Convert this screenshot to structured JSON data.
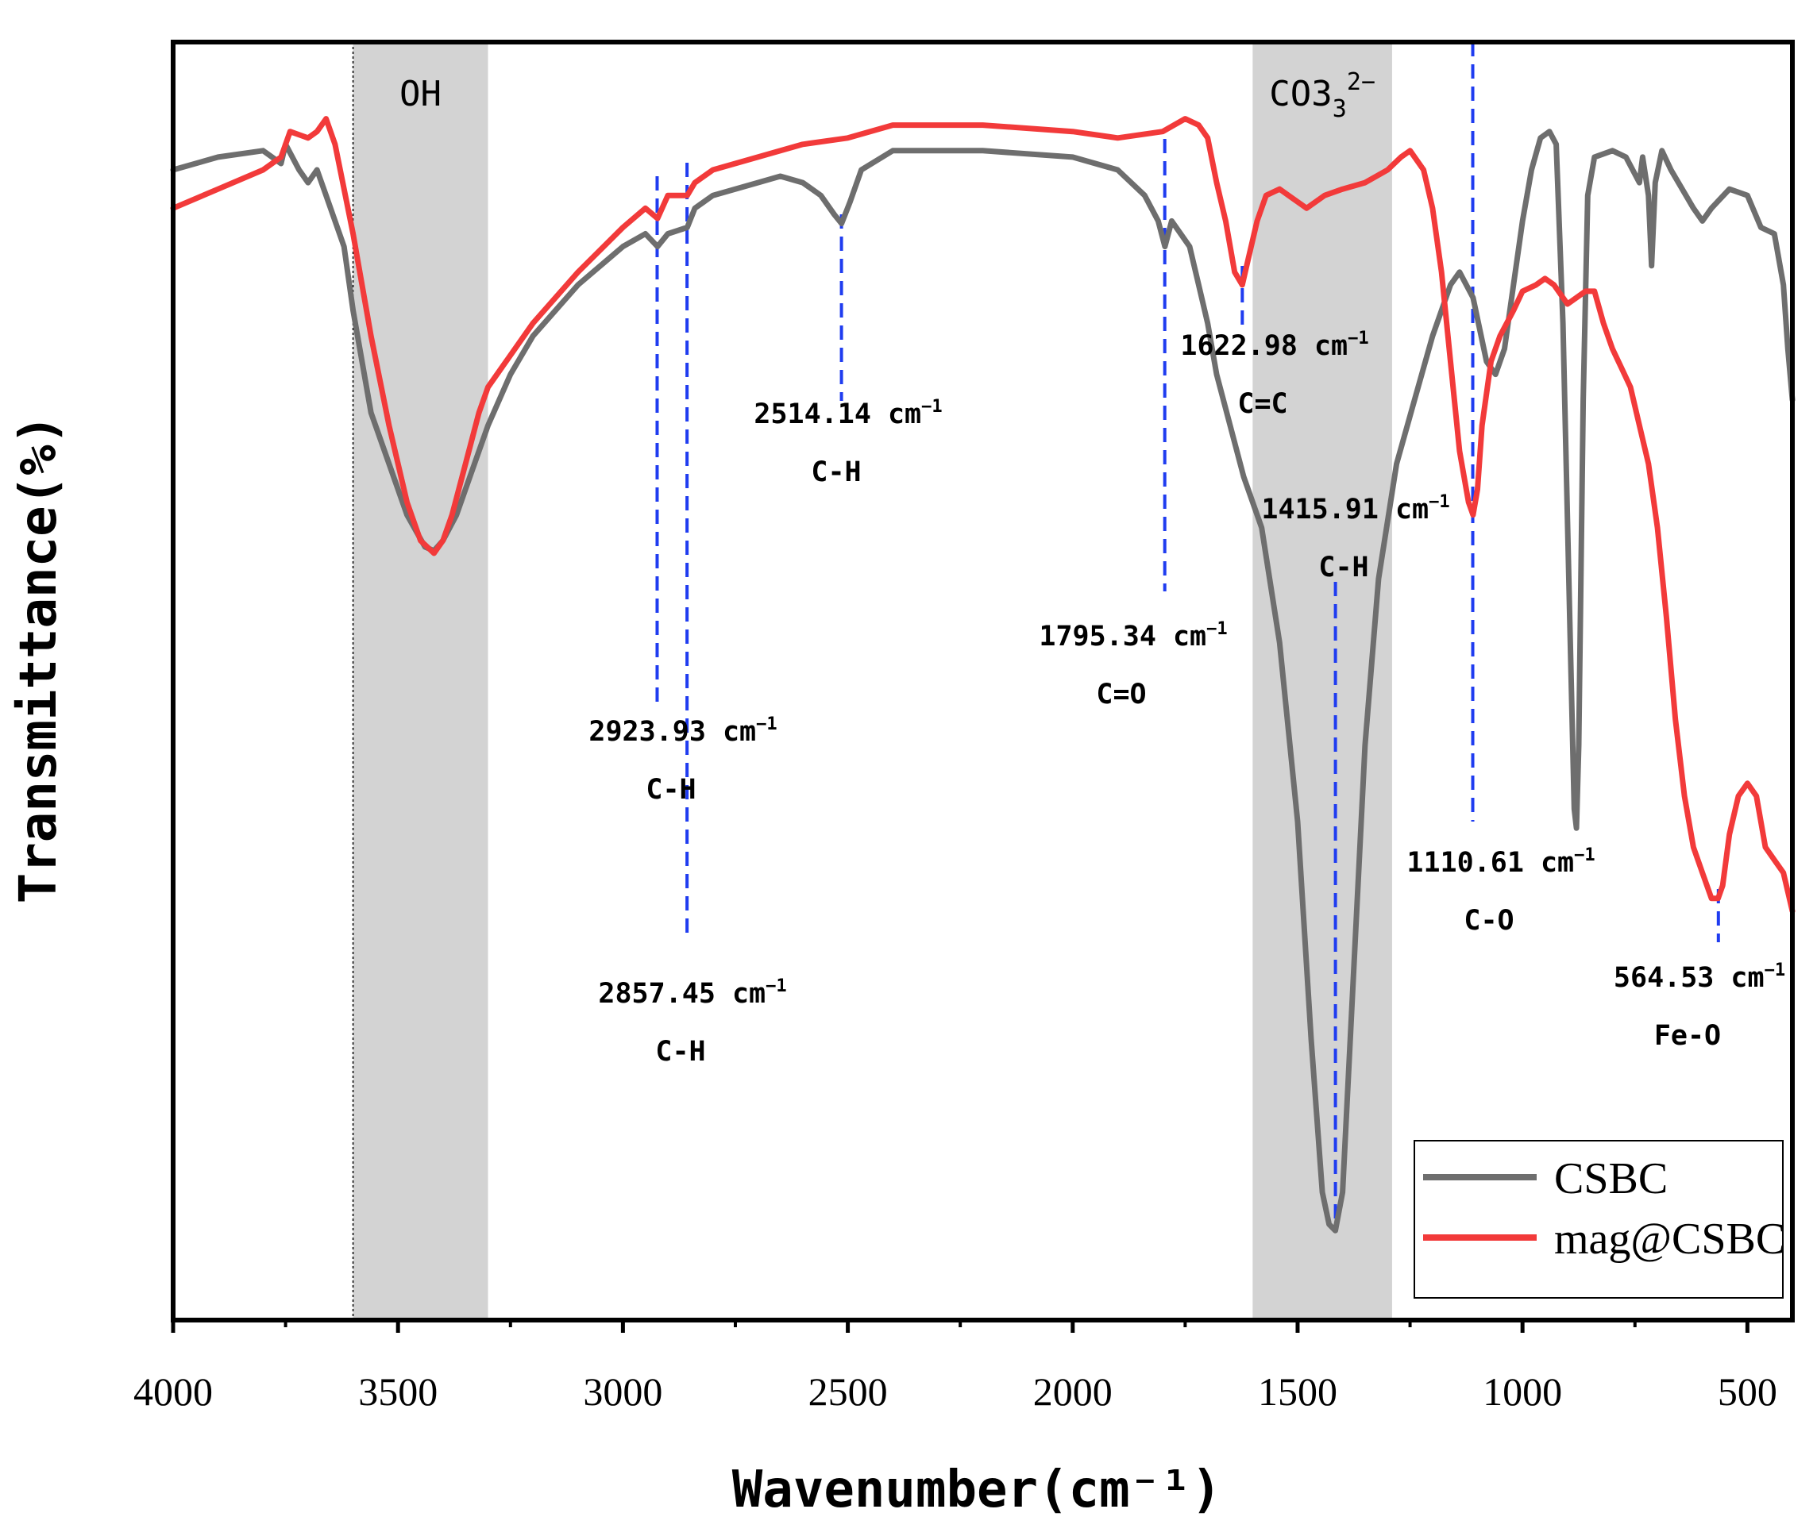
{
  "chart_data": {
    "type": "line",
    "title": "",
    "xlabel": "Wavenumber",
    "xlabel_unit": "(cm⁻¹)",
    "ylabel": "Transmittance(%)",
    "xlim": [
      4000,
      400
    ],
    "ylim": [
      0,
      100
    ],
    "x_ticks": [
      4000,
      3500,
      3000,
      2500,
      2000,
      1500,
      1000,
      500
    ],
    "x_tick_labels": [
      "4000",
      "3500",
      "3000",
      "2500",
      "2000",
      "1500",
      "1000",
      "500"
    ],
    "shaded_regions": [
      {
        "label": "OH",
        "x_from": 3600,
        "x_to": 3300
      },
      {
        "label": "CO3",
        "label_sub": "3",
        "label_sup": "2−",
        "x_from": 1600,
        "x_to": 1290
      }
    ],
    "series": [
      {
        "name": "CSBC",
        "color": "#6e6e6e",
        "points": [
          [
            4000,
            90
          ],
          [
            3900,
            91
          ],
          [
            3800,
            91.5
          ],
          [
            3760,
            90.5
          ],
          [
            3750,
            92
          ],
          [
            3720,
            90
          ],
          [
            3700,
            89
          ],
          [
            3680,
            90
          ],
          [
            3660,
            88
          ],
          [
            3620,
            84
          ],
          [
            3600,
            79
          ],
          [
            3560,
            71
          ],
          [
            3520,
            67
          ],
          [
            3480,
            63
          ],
          [
            3440,
            60.5
          ],
          [
            3420,
            60.2
          ],
          [
            3400,
            61
          ],
          [
            3370,
            63
          ],
          [
            3340,
            66
          ],
          [
            3300,
            70
          ],
          [
            3250,
            74
          ],
          [
            3200,
            77
          ],
          [
            3100,
            81
          ],
          [
            3000,
            84
          ],
          [
            2950,
            85
          ],
          [
            2923,
            84
          ],
          [
            2900,
            85
          ],
          [
            2857,
            85.5
          ],
          [
            2840,
            87
          ],
          [
            2800,
            88
          ],
          [
            2700,
            89
          ],
          [
            2650,
            89.5
          ],
          [
            2600,
            89
          ],
          [
            2560,
            88
          ],
          [
            2530,
            86.5
          ],
          [
            2514,
            85.8
          ],
          [
            2495,
            87.5
          ],
          [
            2470,
            90
          ],
          [
            2400,
            91.5
          ],
          [
            2200,
            91.5
          ],
          [
            2000,
            91
          ],
          [
            1900,
            90
          ],
          [
            1840,
            88
          ],
          [
            1810,
            86
          ],
          [
            1795,
            84
          ],
          [
            1780,
            86
          ],
          [
            1760,
            85
          ],
          [
            1740,
            84
          ],
          [
            1720,
            81
          ],
          [
            1700,
            78
          ],
          [
            1680,
            74
          ],
          [
            1650,
            70
          ],
          [
            1620,
            66
          ],
          [
            1580,
            62
          ],
          [
            1540,
            53
          ],
          [
            1500,
            39
          ],
          [
            1470,
            22
          ],
          [
            1445,
            10
          ],
          [
            1430,
            7.5
          ],
          [
            1416,
            7
          ],
          [
            1400,
            10
          ],
          [
            1380,
            24
          ],
          [
            1350,
            45
          ],
          [
            1320,
            58
          ],
          [
            1280,
            67
          ],
          [
            1240,
            72
          ],
          [
            1200,
            77
          ],
          [
            1160,
            81
          ],
          [
            1140,
            82
          ],
          [
            1110,
            80
          ],
          [
            1080,
            75
          ],
          [
            1060,
            74
          ],
          [
            1040,
            76
          ],
          [
            1020,
            81
          ],
          [
            1000,
            86
          ],
          [
            980,
            90
          ],
          [
            960,
            92.5
          ],
          [
            940,
            93
          ],
          [
            925,
            92
          ],
          [
            910,
            78
          ],
          [
            895,
            55
          ],
          [
            885,
            40
          ],
          [
            880,
            38.5
          ],
          [
            875,
            45
          ],
          [
            865,
            72
          ],
          [
            855,
            88
          ],
          [
            840,
            91
          ],
          [
            800,
            91.5
          ],
          [
            770,
            91
          ],
          [
            740,
            89
          ],
          [
            733,
            91
          ],
          [
            720,
            88
          ],
          [
            713,
            82.5
          ],
          [
            705,
            89
          ],
          [
            690,
            91.5
          ],
          [
            670,
            90
          ],
          [
            620,
            87
          ],
          [
            600,
            86
          ],
          [
            580,
            87
          ],
          [
            540,
            88.5
          ],
          [
            500,
            88
          ],
          [
            470,
            85.5
          ],
          [
            440,
            85
          ],
          [
            420,
            81
          ],
          [
            410,
            76
          ],
          [
            400,
            72
          ]
        ]
      },
      {
        "name": "mag@CSBC",
        "color": "#f23a3a",
        "points": [
          [
            4000,
            87
          ],
          [
            3900,
            88.5
          ],
          [
            3800,
            90
          ],
          [
            3760,
            91
          ],
          [
            3740,
            93
          ],
          [
            3700,
            92.5
          ],
          [
            3680,
            93
          ],
          [
            3660,
            94
          ],
          [
            3640,
            92
          ],
          [
            3600,
            85
          ],
          [
            3560,
            77
          ],
          [
            3520,
            70
          ],
          [
            3480,
            64
          ],
          [
            3450,
            61
          ],
          [
            3420,
            60
          ],
          [
            3400,
            61
          ],
          [
            3380,
            63
          ],
          [
            3350,
            67
          ],
          [
            3320,
            71
          ],
          [
            3300,
            73
          ],
          [
            3200,
            78
          ],
          [
            3100,
            82
          ],
          [
            3000,
            85.5
          ],
          [
            2950,
            87
          ],
          [
            2923,
            86.2
          ],
          [
            2900,
            88
          ],
          [
            2857,
            88
          ],
          [
            2840,
            89
          ],
          [
            2800,
            90
          ],
          [
            2700,
            91
          ],
          [
            2600,
            92
          ],
          [
            2500,
            92.5
          ],
          [
            2400,
            93.5
          ],
          [
            2200,
            93.5
          ],
          [
            2000,
            93
          ],
          [
            1900,
            92.5
          ],
          [
            1800,
            93
          ],
          [
            1750,
            94
          ],
          [
            1720,
            93.5
          ],
          [
            1700,
            92.5
          ],
          [
            1680,
            89
          ],
          [
            1660,
            86
          ],
          [
            1640,
            82
          ],
          [
            1623,
            81
          ],
          [
            1610,
            83
          ],
          [
            1590,
            86
          ],
          [
            1570,
            88
          ],
          [
            1540,
            88.5
          ],
          [
            1500,
            87.5
          ],
          [
            1480,
            87
          ],
          [
            1440,
            88
          ],
          [
            1400,
            88.5
          ],
          [
            1350,
            89
          ],
          [
            1300,
            90
          ],
          [
            1270,
            91
          ],
          [
            1250,
            91.5
          ],
          [
            1220,
            90
          ],
          [
            1200,
            87
          ],
          [
            1180,
            82
          ],
          [
            1160,
            75
          ],
          [
            1140,
            68
          ],
          [
            1120,
            64
          ],
          [
            1110,
            63
          ],
          [
            1100,
            65
          ],
          [
            1090,
            70
          ],
          [
            1070,
            75
          ],
          [
            1050,
            77
          ],
          [
            1020,
            79
          ],
          [
            1000,
            80.5
          ],
          [
            970,
            81
          ],
          [
            950,
            81.5
          ],
          [
            930,
            81
          ],
          [
            900,
            79.5
          ],
          [
            880,
            80
          ],
          [
            860,
            80.5
          ],
          [
            840,
            80.5
          ],
          [
            820,
            78
          ],
          [
            800,
            76
          ],
          [
            780,
            74.5
          ],
          [
            760,
            73
          ],
          [
            740,
            70
          ],
          [
            720,
            67
          ],
          [
            700,
            62
          ],
          [
            680,
            55
          ],
          [
            660,
            47
          ],
          [
            640,
            41
          ],
          [
            620,
            37
          ],
          [
            600,
            35
          ],
          [
            580,
            33
          ],
          [
            565,
            33
          ],
          [
            555,
            34
          ],
          [
            540,
            38
          ],
          [
            520,
            41
          ],
          [
            500,
            42
          ],
          [
            480,
            41
          ],
          [
            460,
            37
          ],
          [
            440,
            36
          ],
          [
            420,
            35
          ],
          [
            400,
            32
          ]
        ]
      }
    ],
    "annotations": [
      {
        "x": 2923.93,
        "value_text": "2923.93",
        "unit": "cm",
        "sup": "−1",
        "bond": "C-H"
      },
      {
        "x": 2857.45,
        "value_text": "2857.45",
        "unit": "cm",
        "sup": "−1",
        "bond": "C-H"
      },
      {
        "x": 2514.14,
        "value_text": "2514.14",
        "unit": "cm",
        "sup": "−1",
        "bond": "C-H"
      },
      {
        "x": 1795.34,
        "value_text": "1795.34",
        "unit": "cm",
        "sup": "−1",
        "bond": "C=O"
      },
      {
        "x": 1622.98,
        "value_text": "1622.98",
        "unit": "cm",
        "sup": "−1",
        "bond": "C=C"
      },
      {
        "x": 1415.91,
        "value_text": "1415.91",
        "unit": "cm",
        "sup": "−1",
        "bond": "C-H"
      },
      {
        "x": 1110.61,
        "value_text": "1110.61",
        "unit": "cm",
        "sup": "−1",
        "bond": "C-O"
      },
      {
        "x": 564.53,
        "value_text": "564.53",
        "unit": "cm",
        "sup": "−1",
        "bond": "Fe-O"
      }
    ],
    "legend": {
      "position": "bottom-right",
      "entries": [
        "CSBC",
        "mag@CSBC"
      ]
    },
    "grid": false
  }
}
